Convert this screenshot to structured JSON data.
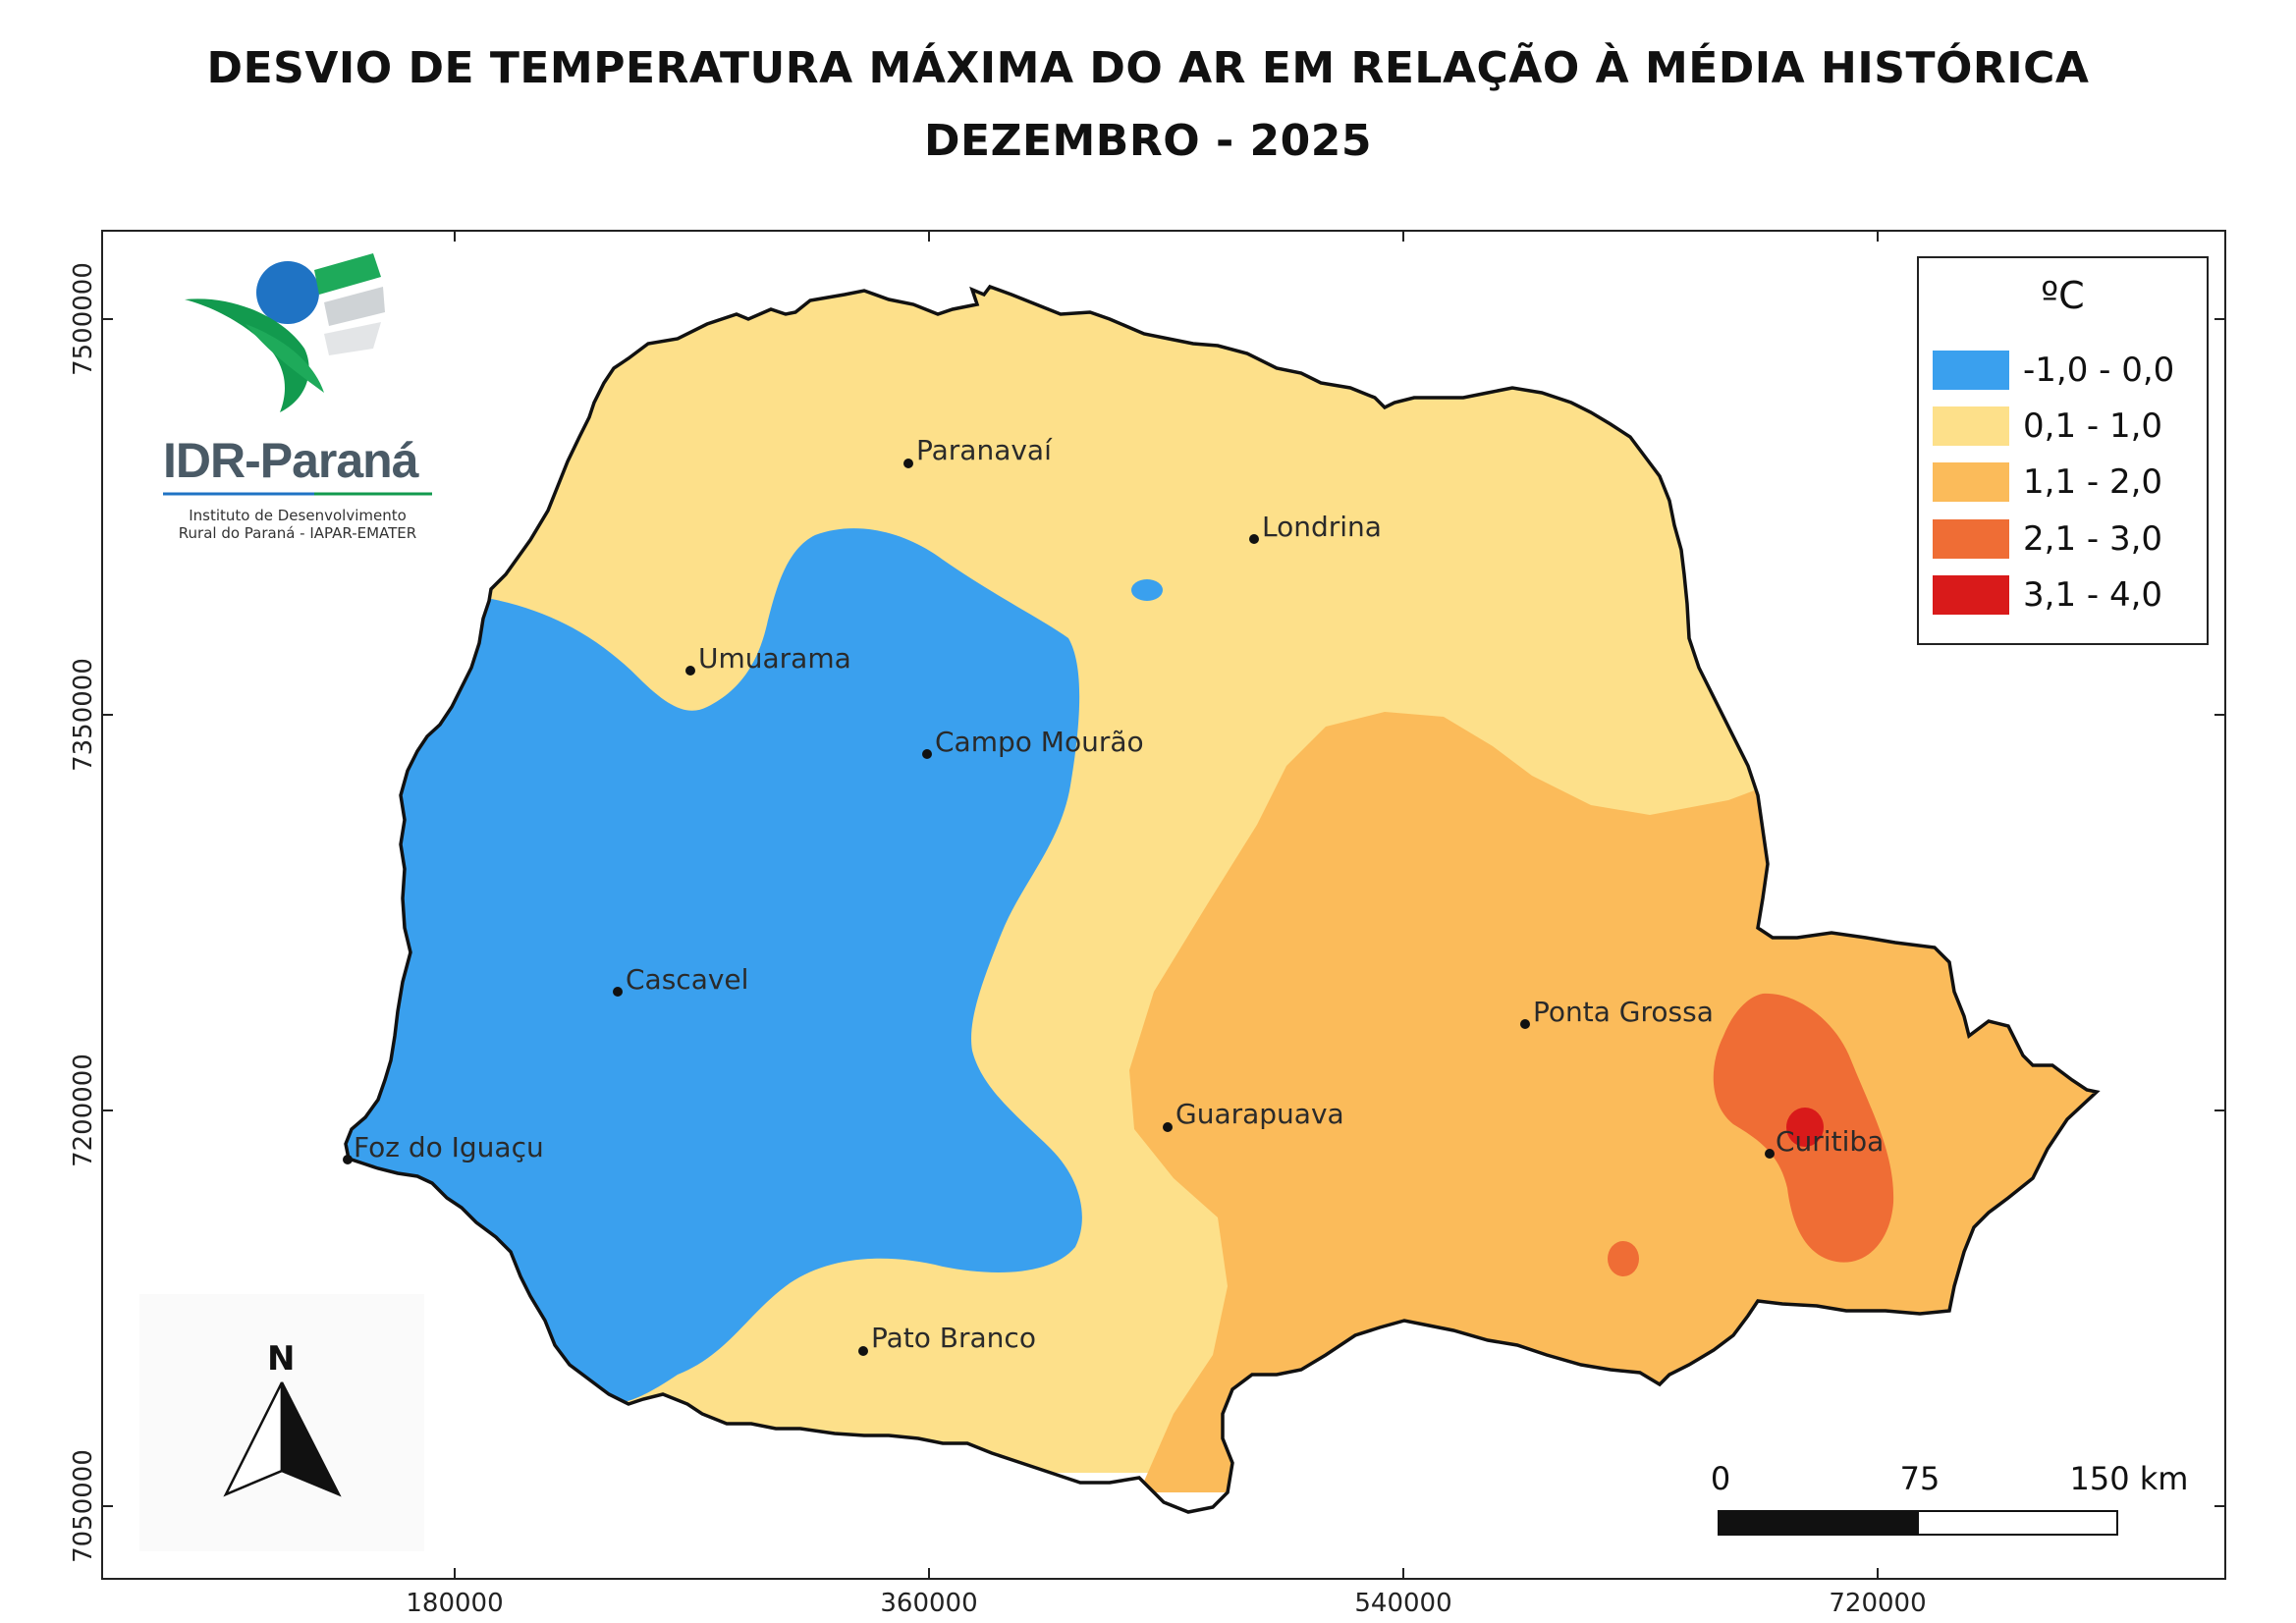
{
  "header": {
    "title_line1": "DESVIO DE TEMPERATURA MÁXIMA DO AR EM RELAÇÃO À MÉDIA HISTÓRICA",
    "title_line2": "DEZEMBRO - 2025"
  },
  "logo": {
    "name": "IDR-Paraná",
    "subtitle_line1": "Instituto de Desenvolvimento",
    "subtitle_line2": "Rural do Paraná - IAPAR-EMATER"
  },
  "legend": {
    "title": "ºC",
    "items": [
      {
        "label": "-1,0 - 0,0",
        "color": "#3aa0ee"
      },
      {
        "label": "0,1 - 1,0",
        "color": "#fde08a"
      },
      {
        "label": "1,1 - 2,0",
        "color": "#fbbb5a"
      },
      {
        "label": "2,1 - 3,0",
        "color": "#ef6d35"
      },
      {
        "label": "3,1 - 4,0",
        "color": "#d91a1a"
      }
    ]
  },
  "cities": [
    {
      "name": "Paranavaí"
    },
    {
      "name": "Londrina"
    },
    {
      "name": "Umuarama"
    },
    {
      "name": "Campo Mourão"
    },
    {
      "name": "Cascavel"
    },
    {
      "name": "Ponta Grossa"
    },
    {
      "name": "Guarapuava"
    },
    {
      "name": "Foz do Iguaçu"
    },
    {
      "name": "Curitiba"
    },
    {
      "name": "Pato Branco"
    }
  ],
  "axes": {
    "x_ticks": [
      "180000",
      "360000",
      "540000",
      "720000"
    ],
    "y_ticks": [
      "7500000",
      "7350000",
      "7200000",
      "7050000"
    ]
  },
  "north_arrow": {
    "label": "N"
  },
  "scale_bar": {
    "labels": [
      "0",
      "75",
      "150 km"
    ]
  }
}
